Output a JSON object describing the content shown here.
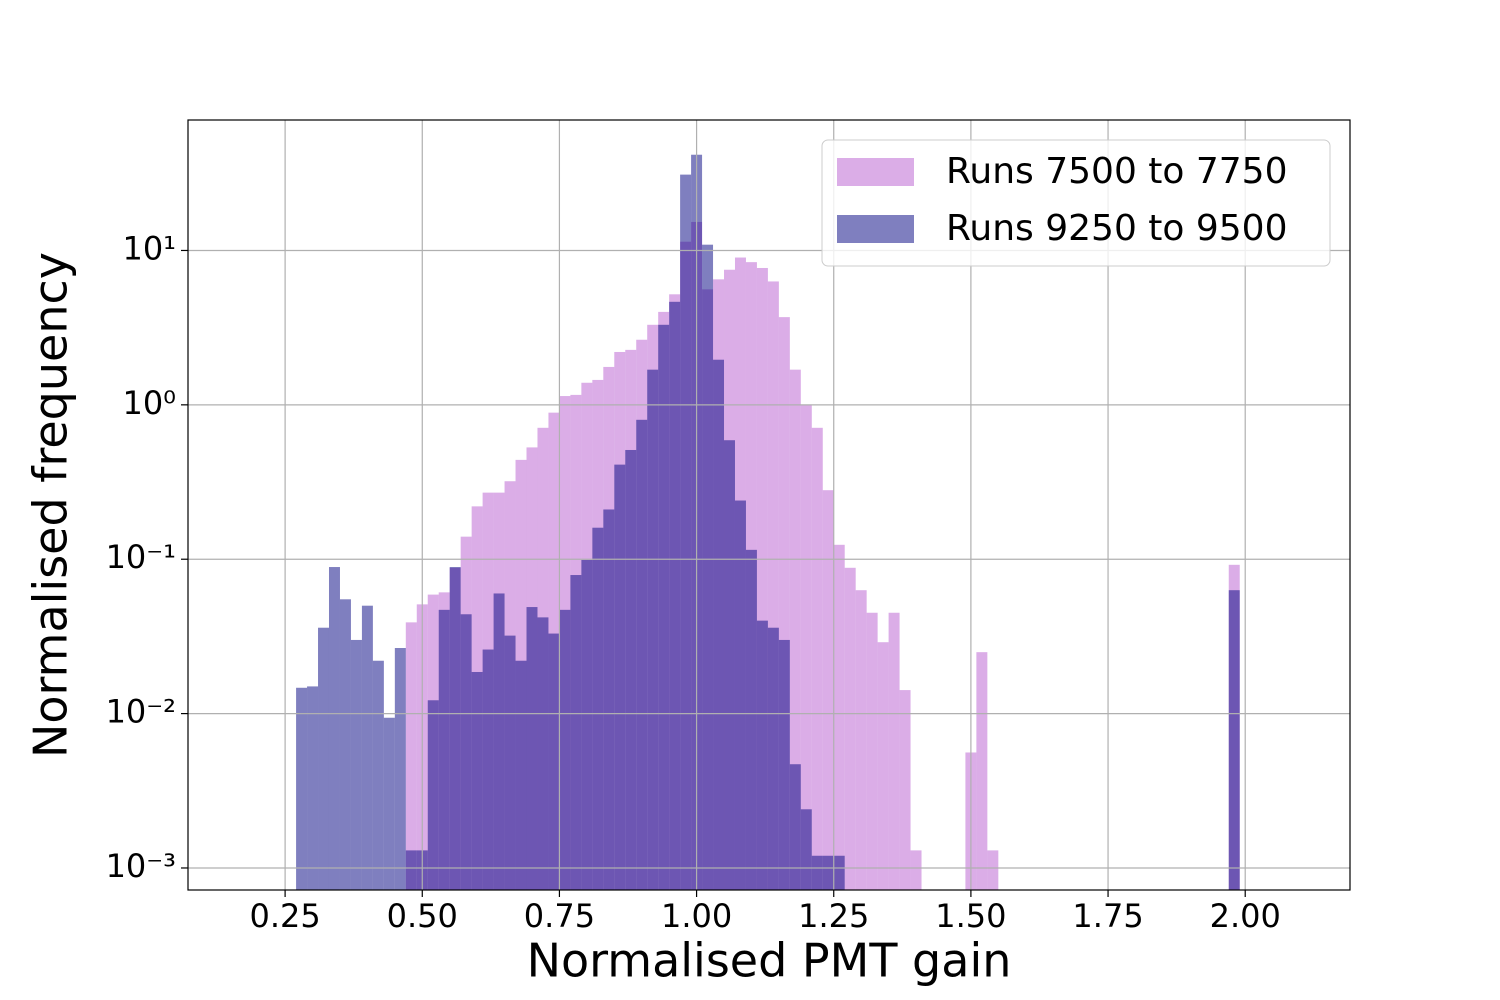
{
  "chart_data": {
    "type": "histogram",
    "xlabel": "Normalised PMT gain",
    "ylabel": "Normalised frequency",
    "bins": [
      0.27,
      0.29,
      0.31,
      0.33,
      0.35,
      0.37,
      0.39,
      0.41,
      0.43,
      0.45,
      0.47,
      0.49,
      0.51,
      0.53,
      0.55,
      0.57,
      0.59,
      0.61,
      0.63,
      0.65,
      0.67,
      0.69,
      0.71,
      0.73,
      0.75,
      0.77,
      0.79,
      0.81,
      0.83,
      0.85,
      0.87,
      0.89,
      0.91,
      0.93,
      0.95,
      0.97,
      0.99,
      1.01,
      1.03,
      1.05,
      1.07,
      1.09,
      1.11,
      1.13,
      1.15,
      1.17,
      1.19,
      1.21,
      1.23,
      1.25,
      1.27,
      1.29,
      1.31,
      1.33,
      1.35,
      1.37,
      1.39,
      1.41,
      1.43,
      1.45,
      1.47,
      1.49,
      1.51,
      1.53,
      1.55,
      1.57,
      1.59,
      1.61,
      1.63,
      1.65,
      1.67,
      1.69,
      1.71,
      1.73,
      1.75,
      1.77,
      1.79,
      1.81,
      1.83,
      1.85,
      1.87,
      1.89,
      1.91,
      1.93,
      1.95,
      1.97,
      1.99
    ],
    "series": [
      {
        "name": "Runs 7500 to 7750",
        "color": "#b75bd0",
        "alpha": 0.5,
        "values": [
          0,
          0,
          0,
          0,
          0,
          0,
          0,
          0,
          0,
          0,
          0.039,
          0.051,
          0.059,
          0.061,
          0.088,
          0.14,
          0.22,
          0.27,
          0.27,
          0.32,
          0.44,
          0.53,
          0.71,
          0.89,
          1.14,
          1.16,
          1.39,
          1.45,
          1.76,
          2.2,
          2.27,
          2.64,
          3.3,
          4.0,
          5.2,
          11.4,
          15.3,
          5.6,
          6.5,
          7.5,
          9.0,
          8.4,
          7.7,
          6.3,
          3.7,
          1.69,
          1.0,
          0.71,
          0.28,
          0.124,
          0.088,
          0.063,
          0.045,
          0.029,
          0.045,
          0.0142,
          0.0013,
          0,
          0,
          0,
          0,
          0.0056,
          0.025,
          0.0013,
          0,
          0,
          0,
          0,
          0,
          0,
          0,
          0,
          0,
          0,
          0,
          0,
          0,
          0,
          0,
          0,
          0,
          0,
          0,
          0,
          0,
          0.092
        ]
      },
      {
        "name": "Runs 9250 to 9500",
        "color": "#000080",
        "alpha": 0.5,
        "values": [
          0.0147,
          0.015,
          0.036,
          0.089,
          0.055,
          0.03,
          0.05,
          0.022,
          0.0094,
          0.0266,
          0.0013,
          0.0013,
          0.0122,
          0.047,
          0.089,
          0.044,
          0.0186,
          0.026,
          0.06,
          0.032,
          0.022,
          0.049,
          0.042,
          0.033,
          0.047,
          0.079,
          0.099,
          0.16,
          0.21,
          0.41,
          0.51,
          0.8,
          1.69,
          3.3,
          4.65,
          31,
          41.7,
          10.9,
          1.96,
          0.59,
          0.24,
          0.115,
          0.04,
          0.036,
          0.03,
          0.0047,
          0.0024,
          0.0012,
          0.0012,
          0.0012,
          0,
          0,
          0,
          0,
          0,
          0,
          0,
          0,
          0,
          0,
          0,
          0,
          0,
          0,
          0,
          0,
          0,
          0,
          0,
          0,
          0,
          0,
          0,
          0,
          0,
          0,
          0,
          0,
          0,
          0,
          0,
          0,
          0,
          0,
          0,
          0.063
        ]
      }
    ],
    "xlim": [
      0.073,
      2.191
    ],
    "ylim": [
      0.00072,
      70
    ],
    "yscale": "log",
    "xticks": [
      0.25,
      {
        "value": 0.5,
        "label": "0.50"
      },
      0.75,
      {
        "value": 1,
        "label": "1.00"
      },
      1.25,
      {
        "value": 1.5,
        "label": "1.50"
      },
      1.75,
      {
        "value": 2,
        "label": "2.00"
      }
    ],
    "yticks": [
      {
        "value": 0.001,
        "label": "10⁻³"
      },
      {
        "value": 0.01,
        "label": "10⁻²"
      },
      {
        "value": 0.1,
        "label": "10⁻¹"
      },
      {
        "value": 1,
        "label": "10⁰"
      },
      {
        "value": 10,
        "label": "10¹"
      }
    ],
    "grid": true,
    "legend": "upper right"
  }
}
